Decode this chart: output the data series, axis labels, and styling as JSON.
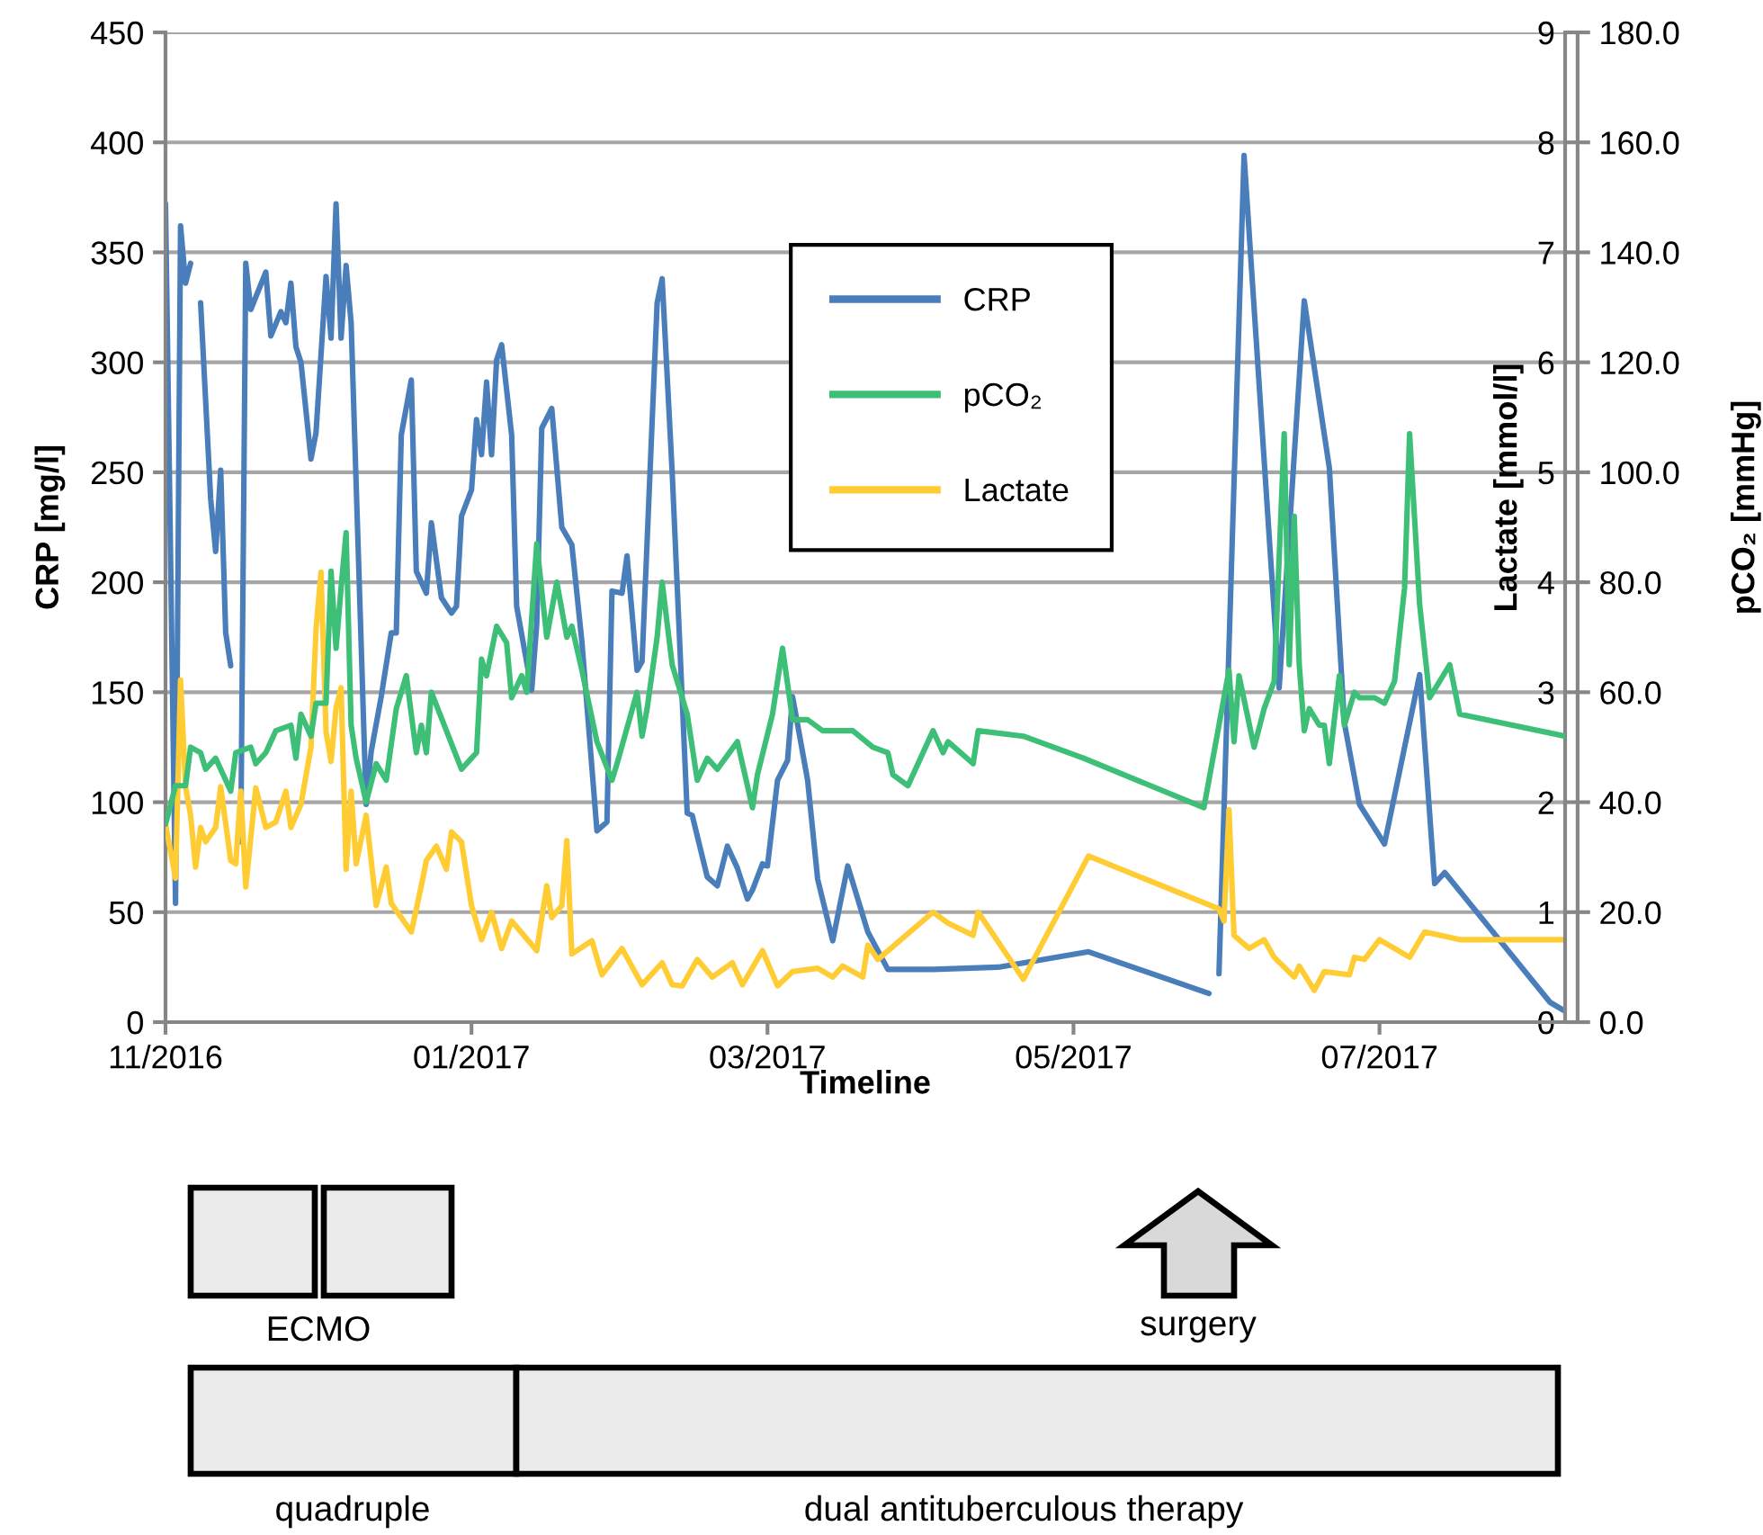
{
  "chart_data": {
    "type": "line",
    "xlabel": "Timeline",
    "ylabel": "CRP [mg/l]",
    "y2label": "Lactate [mmol/l]",
    "y3label": "pCO₂ [mmHg]",
    "xlim": [
      "2016-11-01",
      "2017-08-07"
    ],
    "xticks": [
      {
        "value": "2016-11-01",
        "label": "11/2016"
      },
      {
        "value": "2017-01-01",
        "label": "01/2017"
      },
      {
        "value": "2017-03-01",
        "label": "03/2017"
      },
      {
        "value": "2017-05-01",
        "label": "05/2017"
      },
      {
        "value": "2017-07-01",
        "label": "07/2017"
      }
    ],
    "ylim": [
      0,
      450
    ],
    "yticks": [
      0,
      50,
      100,
      150,
      200,
      250,
      300,
      350,
      400,
      450
    ],
    "y2lim": [
      0,
      9
    ],
    "y2ticks": [
      0,
      1,
      2,
      3,
      4,
      5,
      6,
      7,
      8,
      9
    ],
    "y3lim": [
      0,
      180
    ],
    "y3ticks": [
      {
        "value": 0,
        "label": "0.0"
      },
      {
        "value": 20,
        "label": "20.0"
      },
      {
        "value": 40,
        "label": "40.0"
      },
      {
        "value": 60,
        "label": "60.0"
      },
      {
        "value": 80,
        "label": "80.0"
      },
      {
        "value": 100,
        "label": "100.0"
      },
      {
        "value": 120,
        "label": "120.0"
      },
      {
        "value": 140,
        "label": "140.0"
      },
      {
        "value": 160,
        "label": "160.0"
      },
      {
        "value": 180,
        "label": "180.0"
      }
    ],
    "grid": "y",
    "legend": "top",
    "annotations": [
      "ECMO",
      "surgery",
      "quadruple",
      "dual antituberculous therapy"
    ],
    "series": [
      {
        "name": "CRP",
        "color": "#4a7ebb",
        "axis": "y",
        "x": [
          "2016-11-01",
          "2016-11-03",
          "2016-11-04",
          "2016-11-05",
          "2016-11-06",
          "2016-11-07",
          "2016-11-08",
          "2016-11-10",
          "2016-11-11",
          "2016-11-12",
          "2016-11-13",
          "2016-11-14",
          "2016-11-15",
          "2016-11-16",
          "2016-11-17",
          "2016-11-18",
          "2016-11-21",
          "2016-11-22",
          "2016-11-24",
          "2016-11-25",
          "2016-11-26",
          "2016-11-27",
          "2016-11-28",
          "2016-11-30",
          "2016-12-01",
          "2016-12-03",
          "2016-12-04",
          "2016-12-05",
          "2016-12-06",
          "2016-12-07",
          "2016-12-08",
          "2016-12-11",
          "2016-12-12",
          "2016-12-14",
          "2016-12-16",
          "2016-12-17",
          "2016-12-18",
          "2016-12-20",
          "2016-12-21",
          "2016-12-23",
          "2016-12-24",
          "2016-12-26",
          "2016-12-28",
          "2016-12-29",
          "2016-12-30",
          "2017-01-01",
          "2017-01-02",
          "2017-01-03",
          "2017-01-04",
          "2017-01-05",
          "2017-01-06",
          "2017-01-07",
          "2017-01-09",
          "2017-01-10",
          "2017-01-13",
          "2017-01-14",
          "2017-01-15",
          "2017-01-17",
          "2017-01-19",
          "2017-01-21",
          "2017-01-23",
          "2017-01-26",
          "2017-01-28",
          "2017-01-29",
          "2017-01-31",
          "2017-02-01",
          "2017-02-03",
          "2017-02-04",
          "2017-02-07",
          "2017-02-08",
          "2017-02-10",
          "2017-02-13",
          "2017-02-14",
          "2017-02-17",
          "2017-02-19",
          "2017-02-21",
          "2017-02-23",
          "2017-02-25",
          "2017-02-26",
          "2017-02-28",
          "2017-03-01",
          "2017-03-03",
          "2017-03-05",
          "2017-03-06",
          "2017-03-09",
          "2017-03-11",
          "2017-03-14",
          "2017-03-17",
          "2017-03-21",
          "2017-03-25",
          "2017-04-03",
          "2017-04-16",
          "2017-05-04",
          "2017-05-28",
          "2017-05-29",
          "2017-05-30",
          "2017-06-04",
          "2017-06-11",
          "2017-06-16",
          "2017-06-21",
          "2017-06-24",
          "2017-06-27",
          "2017-07-02",
          "2017-07-09",
          "2017-07-12",
          "2017-07-14",
          "2017-08-04",
          "2017-08-07"
        ],
        "values": [
          372,
          54,
          362,
          336,
          345,
          null,
          327,
          238,
          214,
          251,
          177,
          162,
          null,
          82,
          345,
          324,
          341,
          312,
          323,
          318,
          336,
          307,
          300,
          256,
          268,
          339,
          311,
          372,
          311,
          344,
          318,
          99,
          123,
          148,
          177,
          177,
          267,
          292,
          205,
          195,
          227,
          193,
          186,
          189,
          230,
          242,
          274,
          258,
          291,
          258,
          301,
          308,
          267,
          189,
          151,
          181,
          270,
          279,
          225,
          217,
          173,
          87,
          91,
          196,
          195,
          212,
          160,
          164,
          327,
          338,
          250,
          95,
          94,
          66,
          62,
          80,
          70,
          56,
          60,
          72,
          71,
          110,
          119,
          148,
          110,
          65,
          37,
          71,
          41,
          24,
          24,
          25,
          32,
          13,
          null,
          22,
          394,
          152,
          328,
          252,
          136,
          99,
          81,
          158,
          63,
          68,
          9,
          5
        ]
      },
      {
        "name": "pCO₂",
        "color": "#3dbf78",
        "axis": "y3",
        "x": [
          "2016-11-01",
          "2016-11-03",
          "2016-11-05",
          "2016-11-06",
          "2016-11-08",
          "2016-11-09",
          "2016-11-11",
          "2016-11-12",
          "2016-11-14",
          "2016-11-15",
          "2016-11-18",
          "2016-11-19",
          "2016-11-21",
          "2016-11-23",
          "2016-11-26",
          "2016-11-27",
          "2016-11-28",
          "2016-11-30",
          "2016-12-01",
          "2016-12-03",
          "2016-12-04",
          "2016-12-05",
          "2016-12-06",
          "2016-12-07",
          "2016-12-08",
          "2016-12-09",
          "2016-12-11",
          "2016-12-13",
          "2016-12-15",
          "2016-12-17",
          "2016-12-19",
          "2016-12-21",
          "2016-12-22",
          "2016-12-23",
          "2016-12-24",
          "2016-12-27",
          "2016-12-30",
          "2017-01-02",
          "2017-01-03",
          "2017-01-04",
          "2017-01-06",
          "2017-01-08",
          "2017-01-09",
          "2017-01-11",
          "2017-01-12",
          "2017-01-14",
          "2017-01-16",
          "2017-01-18",
          "2017-01-20",
          "2017-01-21",
          "2017-01-23",
          "2017-01-26",
          "2017-01-29",
          "2017-01-30",
          "2017-02-03",
          "2017-02-04",
          "2017-02-05",
          "2017-02-07",
          "2017-02-08",
          "2017-02-10",
          "2017-02-13",
          "2017-02-15",
          "2017-02-17",
          "2017-02-19",
          "2017-02-23",
          "2017-02-26",
          "2017-02-27",
          "2017-03-02",
          "2017-03-04",
          "2017-03-06",
          "2017-03-09",
          "2017-03-12",
          "2017-03-18",
          "2017-03-22",
          "2017-03-25",
          "2017-03-26",
          "2017-03-29",
          "2017-04-03",
          "2017-04-05",
          "2017-04-06",
          "2017-04-11",
          "2017-04-12",
          "2017-04-21",
          "2017-05-03",
          "2017-05-27",
          "2017-06-01",
          "2017-06-02",
          "2017-06-03",
          "2017-06-06",
          "2017-06-08",
          "2017-06-10",
          "2017-06-12",
          "2017-06-13",
          "2017-06-14",
          "2017-06-15",
          "2017-06-16",
          "2017-06-17",
          "2017-06-19",
          "2017-06-20",
          "2017-06-21",
          "2017-06-23",
          "2017-06-24",
          "2017-06-26",
          "2017-06-27",
          "2017-06-30",
          "2017-07-02",
          "2017-07-04",
          "2017-07-06",
          "2017-07-07",
          "2017-07-09",
          "2017-07-11",
          "2017-07-15",
          "2017-07-17",
          "2017-08-07"
        ],
        "values": [
          36,
          43,
          43,
          50,
          49,
          46,
          48,
          46,
          42,
          49,
          50,
          47,
          49,
          53,
          54,
          48,
          56,
          52,
          58,
          58,
          82,
          68,
          79,
          89,
          54,
          48,
          40,
          47,
          44,
          57,
          63,
          49,
          54,
          49,
          60,
          53,
          46,
          49,
          66,
          63,
          72,
          69,
          59,
          63,
          60,
          87,
          70,
          80,
          70,
          72,
          64,
          51,
          44,
          47,
          60,
          52,
          57,
          70,
          80,
          65,
          56,
          44,
          48,
          46,
          51,
          39,
          45,
          56,
          68,
          55,
          55,
          53,
          53,
          50,
          49,
          45,
          43,
          53,
          49,
          51,
          47,
          53,
          52,
          48,
          39,
          64,
          51,
          63,
          50,
          57,
          62,
          107,
          65,
          92,
          65,
          53,
          57,
          54,
          54,
          47,
          63,
          54,
          60,
          59,
          59,
          58,
          62,
          79,
          107,
          76,
          59,
          65,
          56,
          52
        ]
      },
      {
        "name": "Lactate",
        "color": "#ffcc33",
        "axis": "y2",
        "x": [
          "2016-11-01",
          "2016-11-03",
          "2016-11-04",
          "2016-11-05",
          "2016-11-06",
          "2016-11-07",
          "2016-11-08",
          "2016-11-09",
          "2016-11-11",
          "2016-11-12",
          "2016-11-14",
          "2016-11-15",
          "2016-11-16",
          "2016-11-17",
          "2016-11-19",
          "2016-11-21",
          "2016-11-23",
          "2016-11-25",
          "2016-11-26",
          "2016-11-28",
          "2016-11-30",
          "2016-12-01",
          "2016-12-02",
          "2016-12-03",
          "2016-12-04",
          "2016-12-05",
          "2016-12-06",
          "2016-12-07",
          "2016-12-08",
          "2016-12-09",
          "2016-12-11",
          "2016-12-13",
          "2016-12-15",
          "2016-12-16",
          "2016-12-20",
          "2016-12-22",
          "2016-12-23",
          "2016-12-25",
          "2016-12-27",
          "2016-12-28",
          "2016-12-30",
          "2017-01-01",
          "2017-01-03",
          "2017-01-05",
          "2017-01-07",
          "2017-01-09",
          "2017-01-14",
          "2017-01-16",
          "2017-01-17",
          "2017-01-19",
          "2017-01-20",
          "2017-01-21",
          "2017-01-25",
          "2017-01-27",
          "2017-01-31",
          "2017-02-04",
          "2017-02-08",
          "2017-02-10",
          "2017-02-12",
          "2017-02-15",
          "2017-02-18",
          "2017-02-22",
          "2017-02-24",
          "2017-02-28",
          "2017-03-03",
          "2017-03-06",
          "2017-03-11",
          "2017-03-14",
          "2017-03-16",
          "2017-03-20",
          "2017-03-21",
          "2017-03-23",
          "2017-04-03",
          "2017-04-06",
          "2017-04-11",
          "2017-04-12",
          "2017-04-21",
          "2017-05-04",
          "2017-05-30",
          "2017-05-31",
          "2017-06-01",
          "2017-06-02",
          "2017-06-05",
          "2017-06-08",
          "2017-06-10",
          "2017-06-14",
          "2017-06-15",
          "2017-06-18",
          "2017-06-20",
          "2017-06-25",
          "2017-06-26",
          "2017-06-28",
          "2017-07-01",
          "2017-07-04",
          "2017-07-07",
          "2017-07-10",
          "2017-07-17",
          "2017-08-07"
        ],
        "values": [
          1.8,
          1.31,
          3.11,
          2.14,
          1.88,
          1.41,
          1.77,
          1.64,
          1.77,
          2.14,
          1.47,
          1.44,
          2.1,
          1.23,
          2.13,
          1.77,
          1.82,
          2.1,
          1.77,
          1.98,
          2.5,
          3.57,
          4.09,
          2.64,
          2.37,
          2.86,
          3.04,
          1.39,
          2.1,
          1.44,
          1.88,
          1.06,
          1.41,
          1.08,
          0.82,
          1.24,
          1.47,
          1.6,
          1.39,
          1.73,
          1.64,
          1.06,
          0.75,
          1.0,
          0.67,
          0.92,
          0.65,
          1.24,
          0.95,
          1.06,
          1.65,
          0.62,
          0.74,
          0.43,
          0.67,
          0.34,
          0.54,
          0.34,
          0.33,
          0.57,
          0.41,
          0.54,
          0.34,
          0.65,
          0.33,
          0.46,
          0.49,
          0.41,
          0.51,
          0.41,
          0.7,
          0.57,
          1.0,
          0.9,
          0.79,
          1.0,
          0.39,
          1.51,
          1.03,
          0.92,
          1.93,
          0.79,
          0.67,
          0.75,
          0.59,
          0.41,
          0.51,
          0.29,
          0.46,
          0.43,
          0.59,
          0.57,
          0.75,
          0.67,
          0.59,
          0.82,
          0.75,
          0.75
        ]
      }
    ]
  }
}
